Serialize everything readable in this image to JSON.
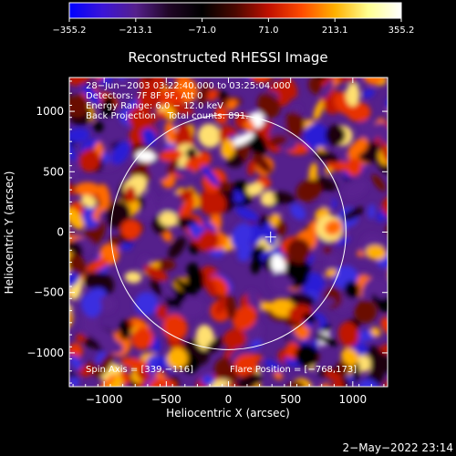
{
  "chart_data": {
    "type": "heatmap",
    "title": "Reconstructed RHESSI Image",
    "xlabel": "Heliocentric X (arcsec)",
    "ylabel": "Heliocentric Y (arcsec)",
    "xlim": [
      -1280,
      1280
    ],
    "ylim": [
      -1280,
      1280
    ],
    "xticks": [
      -1000,
      -500,
      0,
      500,
      1000
    ],
    "yticks": [
      1000,
      500,
      0,
      -500,
      -1000
    ],
    "xtick_labels": [
      "−1000",
      "−500",
      "0",
      "500",
      "1000"
    ],
    "ytick_labels": [
      "1000",
      "500",
      "0",
      "−500",
      "−1000"
    ],
    "colorbar": {
      "min": -355.2,
      "max": 355.2,
      "tick_labels": [
        "−355.2",
        "−213.1",
        "−71.0",
        "71.0",
        "213.1",
        "355.2"
      ],
      "colors": [
        "#0000ff",
        "#3b14d8",
        "#55208c",
        "#200626",
        "#000000",
        "#4a0800",
        "#c01000",
        "#ff4b00",
        "#ffb000",
        "#ffff90",
        "#ffffff"
      ]
    },
    "info_lines": [
      "28−Jun−2003 03:22:40.000 to 03:25:04.000",
      "Detectors: 7F 8F 9F, Att 0",
      "Energy Range: 6.0 − 12.0 keV",
      "Back Projection    Total counts: 891."
    ],
    "spin_axis_label": "Spin Axis = [339,−116]",
    "flare_position_label": "Flare Position = [−768,173]",
    "spin_axis": [
      339,
      -116
    ],
    "solar_limb_radius": 945,
    "grid": false,
    "legend": "none",
    "colorbar_placement": "top"
  },
  "footer": {
    "timestamp": "2−May−2022 23:14"
  }
}
